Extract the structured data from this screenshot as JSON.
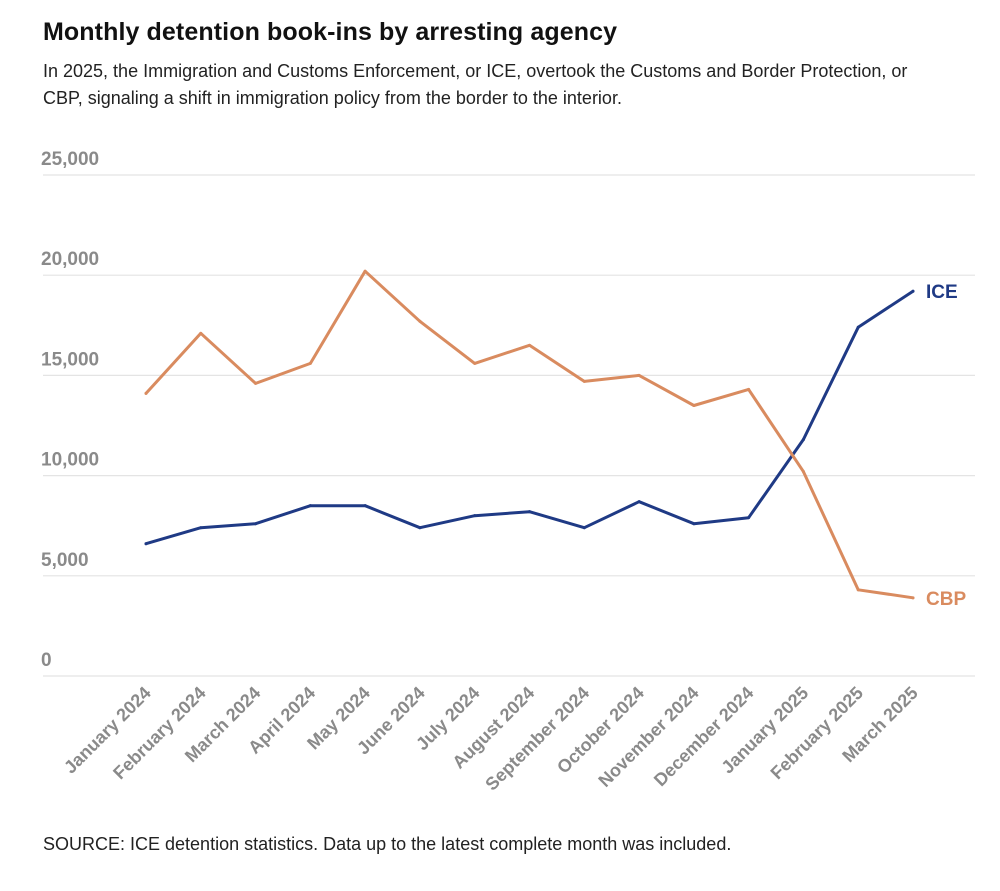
{
  "chart_data": {
    "type": "line",
    "title": "Monthly detention book-ins by arresting agency",
    "subtitle": "In 2025, the Immigration and Customs Enforcement, or ICE, overtook the Customs and Border Protection, or CBP, signaling a shift in immigration policy from the border to the interior.",
    "source": "SOURCE: ICE detention statistics. Data up to the latest complete month was included.",
    "xlabel": "",
    "ylabel": "",
    "ylim": [
      0,
      25000
    ],
    "yticks": [
      0,
      5000,
      10000,
      15000,
      20000,
      25000
    ],
    "ytick_labels": [
      "0",
      "5,000",
      "10,000",
      "15,000",
      "20,000",
      "25,000"
    ],
    "grid": true,
    "categories": [
      "January 2024",
      "February 2024",
      "March 2024",
      "April 2024",
      "May 2024",
      "June 2024",
      "July 2024",
      "August 2024",
      "September 2024",
      "October 2024",
      "November 2024",
      "December 2024",
      "January 2025",
      "February 2025",
      "March 2025"
    ],
    "series": [
      {
        "name": "ICE",
        "color": "#1f3a85",
        "values": [
          6600,
          7400,
          7600,
          8500,
          8500,
          7400,
          8000,
          8200,
          7400,
          8700,
          7600,
          7900,
          11800,
          17400,
          19200
        ]
      },
      {
        "name": "CBP",
        "color": "#d98b5f",
        "values": [
          14100,
          17100,
          14600,
          15600,
          20200,
          17700,
          15600,
          16500,
          14700,
          15000,
          13500,
          14300,
          10200,
          4300,
          3900
        ]
      }
    ]
  }
}
